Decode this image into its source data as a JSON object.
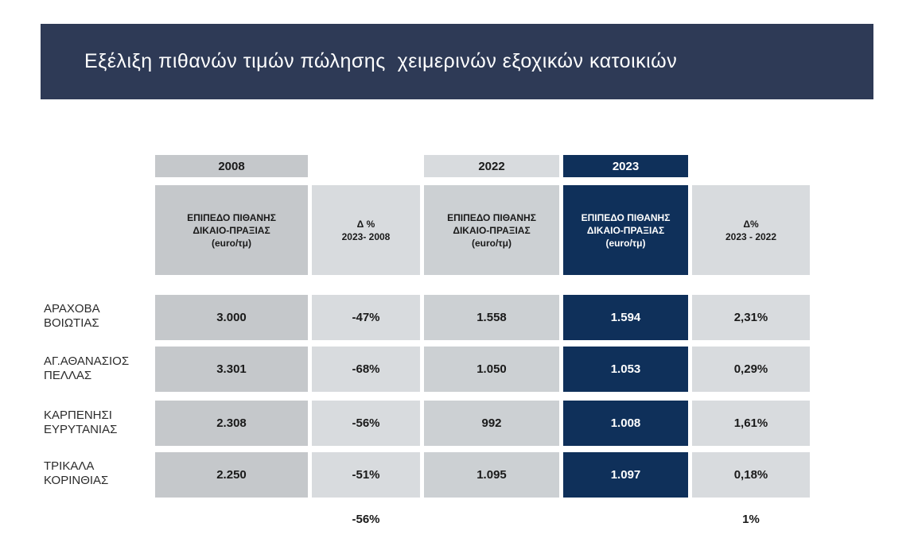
{
  "title": "Εξέλιξη πιθανών τιμών πώλησης  χειμερινών εξοχικών κατοικιών",
  "colors": {
    "banner": "#2e3a56",
    "highlight": "#0f305a",
    "grey": "#c5c8cb"
  },
  "years": {
    "y2008": "2008",
    "y2022": "2022",
    "y2023": "2023"
  },
  "headers": {
    "price_2008": "ΕΠΙΠΕΔΟ ΠΙΘΑΝΗΣ\nΔΙΚΑΙΟ-ΠΡΑΞΙΑΣ\n(euro/τμ)",
    "delta_2023_2008": "Δ %\n2023- 2008",
    "price_2022": "ΕΠΙΠΕΔΟ ΠΙΘΑΝΗΣ\nΔΙΚΑΙΟ-ΠΡΑΞΙΑΣ\n(euro/τμ)",
    "price_2023": "ΕΠΙΠΕΔΟ ΠΙΘΑΝΗΣ\nΔΙΚΑΙΟ-ΠΡΑΞΙΑΣ\n(euro/τμ)",
    "delta_2023_2022": "Δ%\n2023 -  2022"
  },
  "rows": [
    {
      "label": "ΑΡΑΧΟΒΑ\nΒΟΙΩΤΙΑΣ",
      "p2008": "3.000",
      "d0823": "-47%",
      "p2022": "1.558",
      "p2023": "1.594",
      "d2223": "2,31%"
    },
    {
      "label": "ΑΓ.ΑΘΑΝΑΣΙΟΣ\nΠΕΛΛΑΣ",
      "p2008": "3.301",
      "d0823": "-68%",
      "p2022": "1.050",
      "p2023": "1.053",
      "d2223": "0,29%"
    },
    {
      "label": "ΚΑΡΠΕΝΗΣΙ\nΕΥΡΥΤΑΝΙΑΣ",
      "p2008": "2.308",
      "d0823": "-56%",
      "p2022": "992",
      "p2023": "1.008",
      "d2223": "1,61%"
    },
    {
      "label": "ΤΡΙΚΑΛΑ\nΚΟΡΙΝΘΙΑΣ",
      "p2008": "2.250",
      "d0823": "-51%",
      "p2022": "1.095",
      "p2023": "1.097",
      "d2223": "0,18%"
    }
  ],
  "totals": {
    "d0823": "-56%",
    "d2223": "1%"
  }
}
